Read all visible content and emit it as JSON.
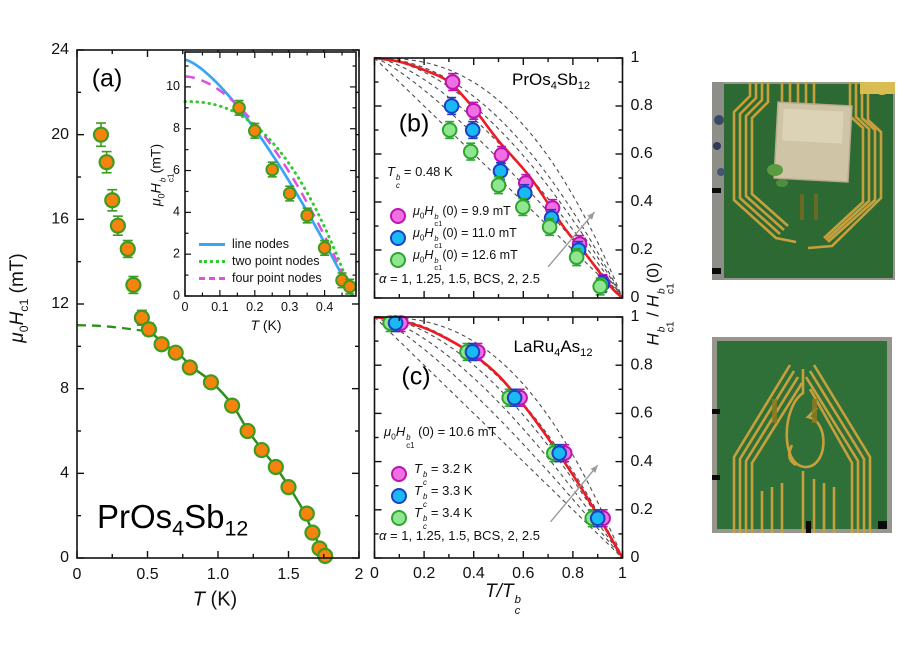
{
  "colors": {
    "orange": "#F5830D",
    "orange_edge": "#3E9B1F",
    "fit_green": "#2E8F1D",
    "line_blue": "#38A6F2",
    "dot_green": "#2FCC30",
    "dash_magenta": "#E04FE0",
    "magenta": "#F06FE3",
    "magenta_edge": "#BE13AE",
    "blue": "#19B9F3",
    "blue_edge": "#1C3FC4",
    "green": "#8EE78E",
    "green_edge": "#2FA52F",
    "red": "#EC1C24",
    "dash_gray": "#4D4D4D",
    "arrow_gray": "#9A9A9A",
    "frame": "#111111",
    "pcb_green": "#2D6A33",
    "pcb_green2": "#2F7038",
    "gold": "#C7A03E",
    "gold_bright": "#D9BC52",
    "sample_tan": "#CFC4A6",
    "photo_edge": "#97968E"
  },
  "labels": {
    "mu": "μ",
    "zero": "0",
    "H": "H",
    "T": "T",
    "b": "b",
    "c": "c",
    "c1": "c1",
    "one": "1",
    "alpha": "α",
    "slash": " / ",
    "paren0": "(0)",
    "mT_unit": " (mT)",
    "mT_unit_tight": "(mT)",
    "K_unit": " (K)",
    "Tslash": "T/"
  },
  "panel_a": {
    "label": "(a)",
    "title": {
      "p1": "PrOs",
      "s1": "4",
      "p2": "Sb",
      "s2": "12"
    }
  },
  "inset_legend": [
    "line nodes",
    "two point nodes",
    "four point nodes"
  ],
  "panel_b": {
    "label": "(b)",
    "title": {
      "p1": "PrOs",
      "s1": "4",
      "p2": "Sb",
      "s2": "12"
    },
    "tc_eq": " = 0.48 K",
    "legend": [
      {
        "eq": "(0) = 9.9 mT"
      },
      {
        "eq": "(0) = 11.0 mT"
      },
      {
        "eq": "(0) = 12.6 mT"
      }
    ],
    "alpha_eq": " = 1, 1.25, 1.5, BCS, 2, 2.5"
  },
  "panel_c": {
    "label": "(c)",
    "title": {
      "p1": "LaRu",
      "s1": "4",
      "p2": "As",
      "s2": "12"
    },
    "h0_eq": " (0) = 10.6 mT",
    "legend": [
      {
        "eq": " = 3.2 K"
      },
      {
        "eq": " = 3.3 K"
      },
      {
        "eq": " = 3.4 K"
      }
    ],
    "alpha_eq": " = 1, 1.25, 1.5, BCS, 2, 2.5"
  },
  "chart_data": [
    {
      "id": "a",
      "type": "scatter",
      "title": "PrOs4Sb12 lower critical field",
      "xlabel": "T (K)",
      "ylabel": "mu0 Hc1 (mT)",
      "xlim": [
        0,
        2
      ],
      "ylim": [
        0,
        24
      ],
      "xticks": [
        0,
        0.5,
        1,
        1.5,
        2
      ],
      "xtick_labels": [
        "0",
        "0.5",
        "1.0",
        "1.5",
        "2"
      ],
      "xminor": [
        0.25,
        0.75,
        1.25,
        1.75
      ],
      "yticks": [
        0,
        4,
        8,
        12,
        16,
        20,
        24
      ],
      "ytick_labels": [
        "0",
        "4",
        "8",
        "12",
        "16",
        "20",
        "24"
      ],
      "yminor": [
        2,
        6,
        10,
        14,
        18,
        22
      ],
      "points": [
        [
          0.17,
          20.0,
          0.55
        ],
        [
          0.21,
          18.7,
          0.5
        ],
        [
          0.25,
          16.9,
          0.5
        ],
        [
          0.29,
          15.7,
          0.45
        ],
        [
          0.36,
          14.6,
          0.4
        ],
        [
          0.4,
          12.9,
          0.4
        ],
        [
          0.46,
          11.35,
          0.35
        ],
        [
          0.51,
          10.8,
          0.3
        ],
        [
          0.6,
          10.1,
          0.25
        ],
        [
          0.7,
          9.7,
          0.25
        ],
        [
          0.8,
          9.0,
          0.25
        ],
        [
          0.95,
          8.3,
          0.25
        ],
        [
          1.1,
          7.2,
          0.25
        ],
        [
          1.21,
          6.0,
          0.25
        ],
        [
          1.31,
          5.1,
          0.25
        ],
        [
          1.41,
          4.3,
          0.25
        ],
        [
          1.5,
          3.35,
          0.25
        ],
        [
          1.63,
          2.1,
          0.25
        ],
        [
          1.67,
          1.2,
          0.25
        ],
        [
          1.72,
          0.45,
          0.2
        ],
        [
          1.76,
          0.1,
          0.2
        ]
      ],
      "fit_solid": [
        [
          0.52,
          10.7
        ],
        [
          0.62,
          10.1
        ],
        [
          0.72,
          9.65
        ],
        [
          0.82,
          9.0
        ],
        [
          0.95,
          8.35
        ],
        [
          1.1,
          7.25
        ],
        [
          1.21,
          6.05
        ],
        [
          1.31,
          5.15
        ],
        [
          1.41,
          4.3
        ],
        [
          1.5,
          3.4
        ],
        [
          1.6,
          2.3
        ],
        [
          1.67,
          1.25
        ],
        [
          1.72,
          0.6
        ],
        [
          1.77,
          0
        ]
      ],
      "fit_dashed": [
        [
          0,
          11.0
        ],
        [
          0.15,
          10.97
        ],
        [
          0.3,
          10.88
        ],
        [
          0.42,
          10.78
        ],
        [
          0.52,
          10.7
        ]
      ],
      "inset": {
        "xlim": [
          0,
          0.49
        ],
        "ylim": [
          0,
          11.67
        ],
        "xticks": [
          0,
          0.1,
          0.2,
          0.3,
          0.4
        ],
        "xtick_labels": [
          "0",
          "0.1",
          "0.2",
          "0.3",
          "0.4"
        ],
        "xminor": [
          0.05,
          0.15,
          0.25,
          0.35,
          0.45
        ],
        "yticks": [
          0,
          2,
          4,
          6,
          8,
          10
        ],
        "ytick_labels": [
          "0",
          "2",
          "4",
          "6",
          "8",
          "10"
        ],
        "yminor": [
          1,
          3,
          5,
          7,
          9,
          11
        ],
        "xlabel": "T (K)",
        "ylabel": "mu0 Hc1^b (mT)",
        "curves": [
          {
            "name": "line nodes",
            "H0": 11.3,
            "exp": 1.4,
            "Tc": 0.48,
            "style": "solid",
            "color_key": "line_blue"
          },
          {
            "name": "two point nodes",
            "H0": 9.3,
            "exp": 2.4,
            "Tc": 0.48,
            "style": "dotted",
            "color_key": "dot_green"
          },
          {
            "name": "four point nodes",
            "H0": 10.5,
            "exp": 1.75,
            "Tc": 0.48,
            "style": "dashed",
            "color_key": "dash_magenta"
          }
        ],
        "points": [
          [
            0.155,
            9.0
          ],
          [
            0.2,
            7.9
          ],
          [
            0.25,
            6.05
          ],
          [
            0.3,
            4.9
          ],
          [
            0.35,
            3.85
          ],
          [
            0.4,
            2.3
          ],
          [
            0.45,
            0.75
          ],
          [
            0.472,
            0.45
          ]
        ],
        "yerr": 0.35
      }
    },
    {
      "id": "b",
      "type": "scatter",
      "title": "PrOs4Sb12 normalized Hc1",
      "xlabel": "T/Tc^b",
      "ylabel": "Hc1^b / Hc1^b(0)",
      "xlim": [
        0,
        1
      ],
      "ylim": [
        0,
        1
      ],
      "xticks": [
        0,
        0.2,
        0.4,
        0.6,
        0.8,
        1
      ],
      "xtick_labels": [
        "0",
        "0.2",
        "0.4",
        "0.6",
        "0.8",
        "1"
      ],
      "xminor": [
        0.1,
        0.3,
        0.5,
        0.7,
        0.9
      ],
      "yticks": [
        0,
        0.2,
        0.4,
        0.6,
        0.8,
        1
      ],
      "ytick_labels": [
        "0",
        "0.2",
        "0.4",
        "0.6",
        "0.8",
        "1"
      ],
      "yminor": [
        0.1,
        0.3,
        0.5,
        0.7,
        0.9
      ],
      "tc_label": "0.48 K",
      "alpha_values": "1, 1.25, 1.5, BCS, 2, 2.5",
      "dashed_alphas": [
        1,
        1.25,
        1.5,
        1.76,
        2,
        2.5
      ],
      "red_curve": [
        [
          0,
          1
        ],
        [
          0.1,
          0.985
        ],
        [
          0.2,
          0.95
        ],
        [
          0.3,
          0.9
        ],
        [
          0.4,
          0.79
        ],
        [
          0.5,
          0.655
        ],
        [
          0.63,
          0.5
        ],
        [
          0.76,
          0.3
        ],
        [
          0.85,
          0.185
        ],
        [
          0.95,
          0.05
        ],
        [
          1,
          0
        ]
      ],
      "series": [
        {
          "name": "mu0Hc1b(0) = 9.9 mT",
          "color_key": "magenta",
          "t": [
            0.315,
            0.4,
            0.512,
            0.61,
            0.718,
            0.827,
            0.921
          ],
          "v": [
            0.9,
            0.78,
            0.596,
            0.479,
            0.375,
            0.225,
            0.062
          ]
        },
        {
          "name": "mu0Hc1b(0) = 11.0 mT",
          "color_key": "blue",
          "t": [
            0.311,
            0.396,
            0.508,
            0.606,
            0.714,
            0.823,
            0.918
          ],
          "v": [
            0.8,
            0.7,
            0.529,
            0.437,
            0.333,
            0.2,
            0.058
          ]
        },
        {
          "name": "mu0Hc1b(0) = 12.6 mT",
          "color_key": "green",
          "t": [
            0.303,
            0.388,
            0.5,
            0.598,
            0.706,
            0.815,
            0.91
          ],
          "v": [
            0.7,
            0.61,
            0.47,
            0.379,
            0.296,
            0.17,
            0.048
          ]
        }
      ],
      "yerr": 0.035,
      "arrow": {
        "from": [
          0.7,
          0.13
        ],
        "to": [
          0.887,
          0.358
        ]
      }
    },
    {
      "id": "c",
      "type": "scatter",
      "title": "LaRu4As12 normalized Hc1",
      "xlabel": "T/Tc^b",
      "ylabel": "Hc1^b / Hc1^b(0)",
      "xlim": [
        0,
        1
      ],
      "ylim": [
        0,
        1
      ],
      "xticks": [
        0,
        0.2,
        0.4,
        0.6,
        0.8,
        1
      ],
      "xtick_labels": [
        "0",
        "0.2",
        "0.4",
        "0.6",
        "0.8",
        "1"
      ],
      "xminor": [
        0.1,
        0.3,
        0.5,
        0.7,
        0.9
      ],
      "yticks": [
        0,
        0.2,
        0.4,
        0.6,
        0.8,
        1
      ],
      "ytick_labels": [
        "0",
        "0.2",
        "0.4",
        "0.6",
        "0.8",
        "1"
      ],
      "yminor": [
        0.1,
        0.3,
        0.5,
        0.7,
        0.9
      ],
      "h0_label": "10.6 mT",
      "alpha_values": "1, 1.25, 1.5, BCS, 2, 2.5",
      "dashed_alphas": [
        1,
        1.25,
        1.5,
        1.76,
        2,
        2.5
      ],
      "red_curve": [
        [
          0,
          1
        ],
        [
          0.1,
          0.985
        ],
        [
          0.2,
          0.955
        ],
        [
          0.3,
          0.906
        ],
        [
          0.4,
          0.843
        ],
        [
          0.5,
          0.757
        ],
        [
          0.6,
          0.636
        ],
        [
          0.7,
          0.497
        ],
        [
          0.8,
          0.345
        ],
        [
          0.9,
          0.178
        ],
        [
          1,
          0
        ]
      ],
      "series": [
        {
          "name": "Tc = 3.2 K",
          "color_key": "magenta",
          "t": [
            0.107,
            0.417,
            0.587,
            0.767,
            0.922
          ],
          "v": [
            0.975,
            0.855,
            0.665,
            0.435,
            0.165
          ]
        },
        {
          "name": "Tc = 3.4 K",
          "color_key": "green",
          "t": [
            0.063,
            0.373,
            0.543,
            0.723,
            0.878
          ],
          "v": [
            0.975,
            0.855,
            0.665,
            0.435,
            0.165
          ]
        },
        {
          "name": "Tc = 3.3 K",
          "color_key": "blue",
          "t": [
            0.085,
            0.395,
            0.565,
            0.745,
            0.9
          ],
          "v": [
            0.975,
            0.855,
            0.665,
            0.435,
            0.165
          ]
        }
      ],
      "yerr": 0.035,
      "arrow": {
        "from": [
          0.71,
          0.15
        ],
        "to": [
          0.9,
          0.385
        ]
      }
    }
  ]
}
